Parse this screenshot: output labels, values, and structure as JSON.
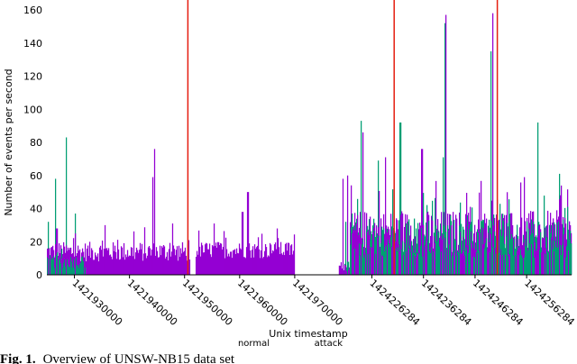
{
  "chart_data": {
    "type": "area",
    "title": "",
    "xlabel": "Unix timestamp",
    "ylabel": "Number of events per second",
    "ylim": [
      0,
      160
    ],
    "yticks": [
      "0",
      "20",
      "40",
      "60",
      "80",
      "100",
      "120",
      "140",
      "160"
    ],
    "xtick_labels": [
      "1421930000",
      "1421940000",
      "1421950000",
      "1421960000",
      "1421970000",
      "1424226284",
      "1424236284",
      "1424246284",
      "1424256284"
    ],
    "legend": [
      "normal",
      "attack"
    ],
    "colors": {
      "normal": "#9400d3",
      "attack": "#009e73",
      "marker": "#e51e10"
    },
    "grid": false,
    "segments": [
      {
        "x_range": [
          1421925000,
          1421951000
        ],
        "normal": {
          "base": 14,
          "noise": 6,
          "peaks": [
            [
              1421926800,
              28
            ],
            [
              1421935600,
              30
            ],
            [
              1421944200,
              59
            ],
            [
              1421944600,
              76
            ],
            [
              1421947800,
              31
            ]
          ]
        },
        "attack": {
          "base": 8,
          "noise": 4,
          "extent": [
            1421925000,
            1421932000
          ],
          "peaks": [
            [
              1421925200,
              32
            ],
            [
              1421926600,
              58
            ],
            [
              1421928500,
              83
            ],
            [
              1421930200,
              37
            ]
          ]
        }
      },
      {
        "x_range": [
          1421952000,
          1421970000
        ],
        "normal": {
          "base": 15,
          "noise": 5,
          "peaks": [
            [
              1421955400,
              31
            ],
            [
              1421960500,
              38
            ],
            [
              1421961500,
              50
            ],
            [
              1421966800,
              28
            ]
          ]
        }
      },
      {
        "x_range": [
          1421978000,
          1421980000
        ],
        "normal": {
          "base": 5,
          "noise": 3,
          "peaks": [
            [
              1421978800,
              58
            ],
            [
              1421979600,
              60
            ]
          ]
        },
        "attack": {
          "base": 5,
          "noise": 3,
          "extent": [
            1421979000,
            1421979800
          ],
          "peaks": [
            [
              1421979300,
              32
            ]
          ]
        }
      },
      {
        "x_range": [
          1424222000,
          1424265000
        ],
        "normal": {
          "base": 25,
          "noise": 14,
          "peaks": [
            [
              1424224500,
              86
            ],
            [
              1424228900,
              71
            ],
            [
              1424236000,
              76
            ],
            [
              1424240600,
              157
            ],
            [
              1424249700,
              158
            ],
            [
              1424255800,
              59
            ],
            [
              1424262800,
              48
            ]
          ]
        },
        "attack": {
          "base": 22,
          "noise": 12,
          "extent": [
            1424222000,
            1424265000
          ],
          "peaks": [
            [
              1424222500,
              37
            ],
            [
              1424224200,
              93
            ],
            [
              1424227500,
              69
            ],
            [
              1424231800,
              92
            ],
            [
              1424240100,
              71
            ],
            [
              1424240500,
              152
            ],
            [
              1424249400,
              135
            ],
            [
              1424258500,
              92
            ],
            [
              1424262700,
              61
            ]
          ]
        }
      }
    ],
    "markers": [
      1421950600,
      1424230600,
      1424250600
    ]
  },
  "caption": {
    "label": "Fig. 1.",
    "text": "Overview of UNSW-NB15 data set"
  }
}
